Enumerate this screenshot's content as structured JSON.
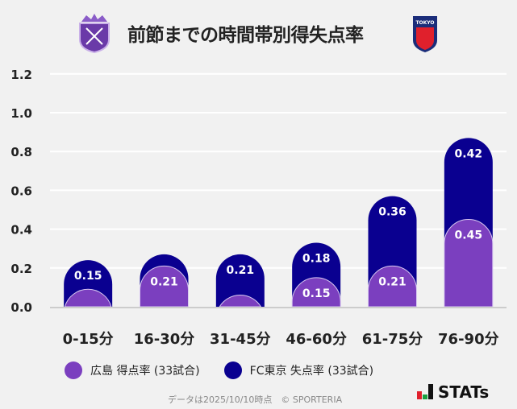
{
  "title": "前節までの時間帯別得失点率",
  "chart_data": {
    "type": "bar",
    "stacked": true,
    "categories": [
      "0-15分",
      "16-30分",
      "31-45分",
      "46-60分",
      "61-75分",
      "76-90分"
    ],
    "series": [
      {
        "name": "広島 得点率 (33試合)",
        "values": [
          0.09,
          0.21,
          0.06,
          0.15,
          0.21,
          0.45
        ],
        "labels": [
          "",
          "0.21",
          "",
          "0.15",
          "0.21",
          "0.45"
        ],
        "color": "#7b3fbf"
      },
      {
        "name": "FC東京 失点率 (33試合)",
        "values": [
          0.15,
          0.06,
          0.21,
          0.18,
          0.36,
          0.42
        ],
        "labels": [
          "0.15",
          "",
          "0.21",
          "0.18",
          "0.36",
          "0.42"
        ],
        "color": "#0a0090"
      }
    ],
    "yticks": [
      "0.0",
      "0.2",
      "0.4",
      "0.6",
      "0.8",
      "1.0",
      "1.2"
    ],
    "ylim": [
      0,
      1.2
    ],
    "grid": true,
    "legend": "bottom"
  },
  "footer": "データは2025/10/10時点　© SPORTERIA",
  "brand": "STATs",
  "logos": {
    "home": "SANFRECCE HIROSHIMA",
    "away": "F C TOKYO"
  }
}
